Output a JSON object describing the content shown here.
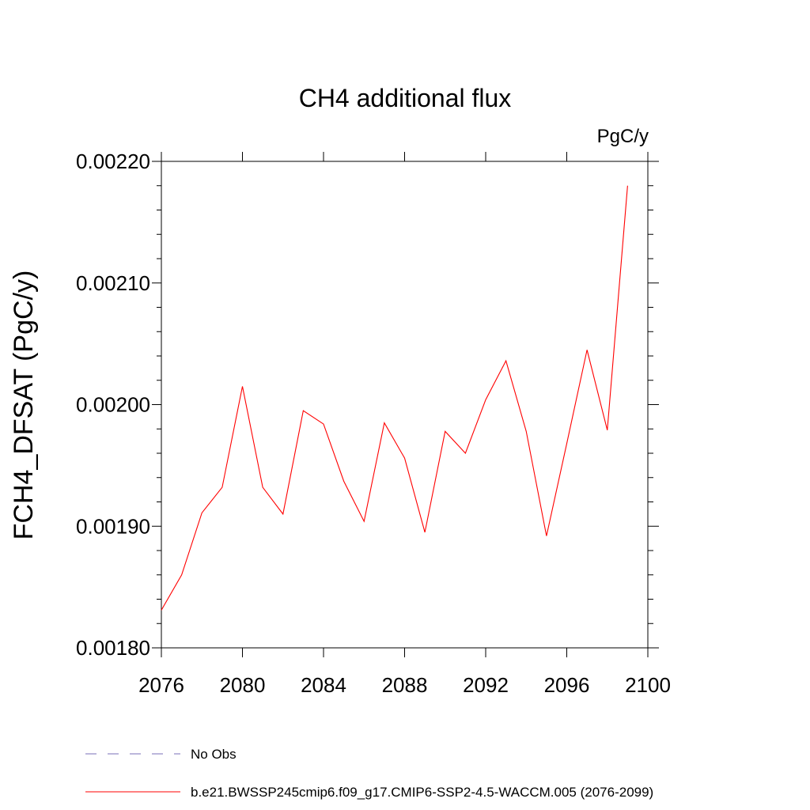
{
  "chart_data": {
    "type": "line",
    "title": "CH4 additional flux",
    "units_label": "PgC/y",
    "ylabel": "FCH4_DFSAT  (PgC/y)",
    "xlabel": "",
    "xlim": [
      2076,
      2100
    ],
    "ylim": [
      0.0018,
      0.0022
    ],
    "x_ticks": [
      2076,
      2080,
      2084,
      2088,
      2092,
      2096,
      2100
    ],
    "x_tick_labels": [
      "2076",
      "2080",
      "2084",
      "2088",
      "2092",
      "2096",
      "2100"
    ],
    "y_ticks": [
      0.0018,
      0.0019,
      0.002,
      0.0021,
      0.0022
    ],
    "y_tick_labels": [
      "0.00180",
      "0.00190",
      "0.00200",
      "0.00210",
      "0.00220"
    ],
    "grid": false,
    "legend_position": "bottom",
    "series": [
      {
        "name": "b.e21.BWSSP245cmip6.f09_g17.CMIP6-SSP2-4.5-WACCM.005 (2076-2099)",
        "color": "#ff0000",
        "style": "solid",
        "x": [
          2076,
          2077,
          2078,
          2079,
          2080,
          2081,
          2082,
          2083,
          2084,
          2085,
          2086,
          2087,
          2088,
          2089,
          2090,
          2091,
          2092,
          2093,
          2094,
          2095,
          2096,
          2097,
          2098,
          2099
        ],
        "y": [
          0.001831,
          0.00186,
          0.001911,
          0.001932,
          0.002015,
          0.001932,
          0.00191,
          0.001995,
          0.001984,
          0.001937,
          0.001904,
          0.001985,
          0.001956,
          0.001895,
          0.001978,
          0.00196,
          0.002004,
          0.002036,
          0.001978,
          0.001892,
          0.001968,
          0.002045,
          0.001979,
          0.00218
        ]
      }
    ],
    "legend": [
      {
        "label": "No Obs",
        "color": "#7a6fb8",
        "style": "dashed"
      },
      {
        "label": "b.e21.BWSSP245cmip6.f09_g17.CMIP6-SSP2-4.5-WACCM.005 (2076-2099)",
        "color": "#ff0000",
        "style": "solid"
      }
    ]
  }
}
